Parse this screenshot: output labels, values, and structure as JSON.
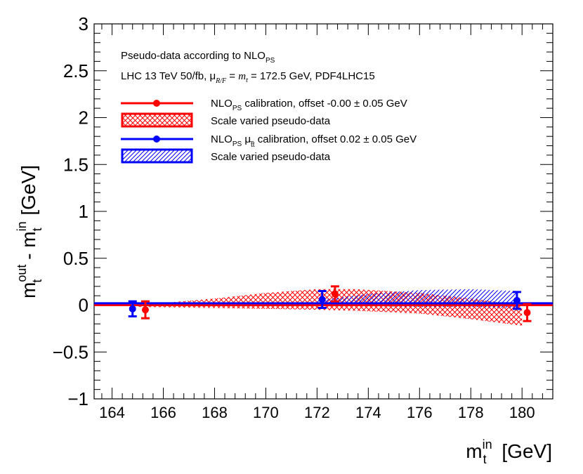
{
  "chart_data": {
    "type": "scatter",
    "title": "",
    "xlabel": {
      "main": "m",
      "sub": "t",
      "sup": "in",
      "unit": "[GeV]"
    },
    "ylabel": {
      "part1_main": "m",
      "part1_sub": "t",
      "part1_sup": "out",
      "sep": " - ",
      "part2_main": "m",
      "part2_sub": "t",
      "part2_sup": "in",
      "unit": " [GeV]"
    },
    "xlim": [
      163.3,
      181.2
    ],
    "ylim": [
      -1,
      3
    ],
    "xticks": [
      164,
      166,
      168,
      170,
      172,
      174,
      176,
      178,
      180
    ],
    "xtick_labels": [
      "164",
      "166",
      "168",
      "170",
      "172",
      "174",
      "176",
      "178",
      "180"
    ],
    "yticks": [
      -1,
      -0.5,
      0,
      0.5,
      1,
      1.5,
      2,
      2.5,
      3
    ],
    "ytick_labels": [
      "−1",
      "−0.5",
      "0",
      "0.5",
      "1",
      "1.5",
      "2",
      "2.5",
      "3"
    ],
    "annotations": {
      "line1_main": "Pseudo-data according to NLO",
      "line1_sub": "PS",
      "line2_pre": "LHC 13 TeV 50/fb, μ",
      "line2_sub": "R/F",
      "line2_eq": " = ",
      "line2_mt": "m",
      "line2_mt_sub": "t",
      "line2_post": " = 172.5 GeV, PDF4LHC15"
    },
    "legend": {
      "entry1": {
        "pre": "NLO",
        "sub": "PS",
        "post": " calibration, offset -0.00 ± 0.05 GeV"
      },
      "entry2": {
        "text": "Scale varied pseudo-data"
      },
      "entry3": {
        "pre": "NLO",
        "sub": "PS",
        "mid": " μ",
        "mid_sub": "t̅t",
        "post": " calibration, offset 0.02 ± 0.05 GeV"
      },
      "entry4": {
        "text": "Scale varied pseudo-data"
      },
      "placement": "top-left"
    },
    "series": [
      {
        "name": "NLO_PS calibration",
        "color": "#ff0000",
        "offset": -0.0,
        "points": [
          {
            "x": 165.3,
            "y": -0.05,
            "err": 0.09
          },
          {
            "x": 172.7,
            "y": 0.12,
            "err": 0.08
          },
          {
            "x": 180.2,
            "y": -0.08,
            "err": 0.09
          }
        ],
        "band": {
          "x": [
            165.0,
            168,
            170,
            172,
            173.5,
            176,
            178,
            180.0
          ],
          "upper": [
            0.0,
            0.07,
            0.13,
            0.17,
            0.17,
            0.13,
            0.07,
            0.0
          ],
          "lower": [
            -0.02,
            -0.03,
            -0.04,
            -0.05,
            -0.06,
            -0.09,
            -0.15,
            -0.22
          ]
        }
      },
      {
        "name": "NLO_PS mu_tt calibration",
        "color": "#0000ff",
        "offset": 0.02,
        "points": [
          {
            "x": 164.8,
            "y": -0.04,
            "err": 0.08
          },
          {
            "x": 172.2,
            "y": 0.06,
            "err": 0.09
          },
          {
            "x": 179.8,
            "y": 0.05,
            "err": 0.09
          }
        ],
        "band": {
          "x": [
            172.0,
            174,
            176,
            178,
            179.8
          ],
          "upper": [
            0.05,
            0.12,
            0.16,
            0.17,
            0.15
          ],
          "lower": [
            0.0,
            -0.01,
            -0.02,
            -0.02,
            -0.03
          ]
        }
      }
    ]
  }
}
